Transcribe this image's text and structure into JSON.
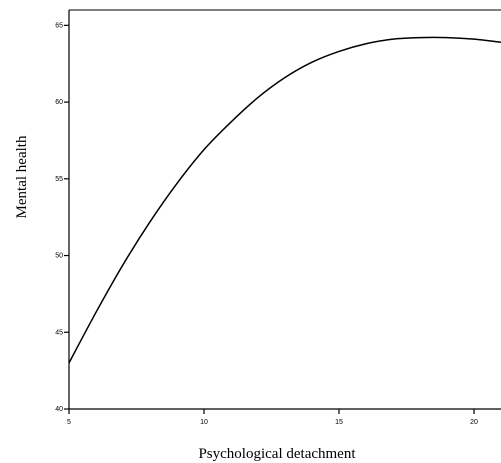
{
  "chart_data": {
    "type": "line",
    "title": "",
    "xlabel": "Psychological detachment",
    "ylabel": "Mental health",
    "xlim": [
      5,
      21
    ],
    "ylim": [
      40,
      66
    ],
    "x_ticks": [
      5,
      10,
      15,
      20
    ],
    "y_ticks": [
      40,
      45,
      50,
      55,
      60,
      65
    ],
    "grid": false,
    "legend": "none",
    "line_color": "#000000",
    "series": [
      {
        "x": [
          5,
          6,
          7,
          8,
          9,
          10,
          11,
          12,
          13,
          14,
          15,
          16,
          17,
          18,
          19,
          20,
          21
        ],
        "values": [
          43.0,
          46.3,
          49.4,
          52.2,
          54.7,
          56.9,
          58.7,
          60.3,
          61.6,
          62.6,
          63.3,
          63.8,
          64.1,
          64.2,
          64.2,
          64.1,
          63.9
        ]
      }
    ]
  }
}
